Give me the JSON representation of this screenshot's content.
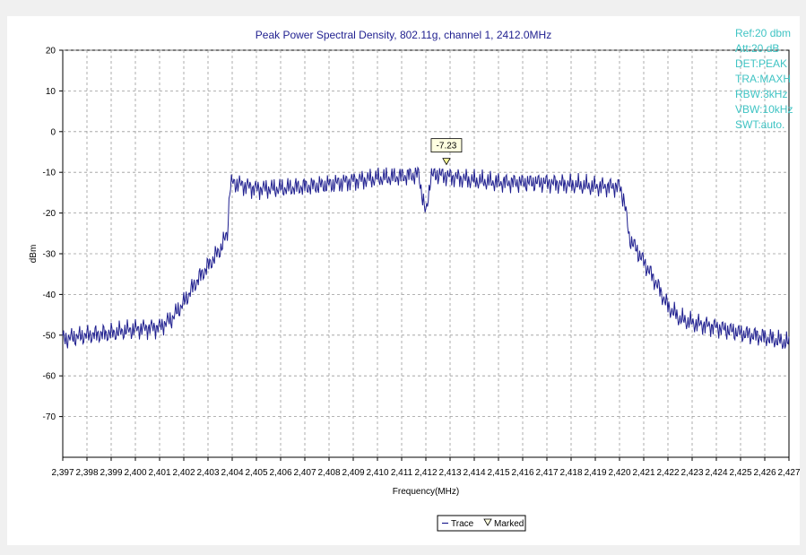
{
  "chart_data": {
    "type": "line",
    "title": "Peak Power Spectral Density, 802.11g, channel 1, 2412.0MHz",
    "xlabel": "Frequency(MHz)",
    "ylabel": "dBm",
    "xlim": [
      2397,
      2427
    ],
    "ylim": [
      -80,
      20
    ],
    "x_ticks": [
      "2,397",
      "2,398",
      "2,399",
      "2,400",
      "2,401",
      "2,402",
      "2,403",
      "2,404",
      "2,405",
      "2,406",
      "2,407",
      "2,408",
      "2,409",
      "2,410",
      "2,411",
      "2,412",
      "2,413",
      "2,414",
      "2,415",
      "2,416",
      "2,417",
      "2,418",
      "2,419",
      "2,420",
      "2,421",
      "2,422",
      "2,423",
      "2,424",
      "2,425",
      "2,426",
      "2,427"
    ],
    "y_ticks": [
      "20",
      "10",
      "0",
      "-10",
      "-20",
      "-30",
      "-40",
      "-50",
      "-60",
      "-70"
    ],
    "grid": true,
    "line_color": "#1f1f8f",
    "series": [
      {
        "name": "Trace",
        "x": [
          2397.0,
          2398.0,
          2399.0,
          2400.0,
          2401.0,
          2401.5,
          2402.0,
          2402.5,
          2403.0,
          2403.5,
          2403.8,
          2403.9,
          2404.0,
          2405.0,
          2406.0,
          2407.0,
          2408.0,
          2409.0,
          2410.0,
          2411.0,
          2411.7,
          2412.0,
          2412.2,
          2412.4,
          2413.0,
          2414.0,
          2415.0,
          2416.0,
          2417.0,
          2418.0,
          2419.0,
          2420.0,
          2420.2,
          2420.4,
          2420.6,
          2421.0,
          2421.5,
          2422.0,
          2422.5,
          2423.0,
          2424.0,
          2425.0,
          2426.0,
          2427.0
        ],
        "y": [
          -51,
          -50,
          -49.5,
          -48.5,
          -48,
          -46,
          -42,
          -37,
          -33,
          -29,
          -25,
          -14,
          -12.5,
          -14,
          -14,
          -13.5,
          -13,
          -12,
          -11.5,
          -11,
          -10.5,
          -20.5,
          -11,
          -10.5,
          -11,
          -12,
          -12.5,
          -12.5,
          -12.5,
          -13,
          -13.5,
          -13.5,
          -17,
          -26,
          -28,
          -32,
          -37,
          -43,
          -46,
          -47,
          -48,
          -49.5,
          -50.5,
          -52
        ]
      }
    ],
    "marker": {
      "x": 2412.85,
      "y": -7.23,
      "label": "-7.23"
    },
    "info_lines": [
      "Ref:20 dbm",
      "Att:20.dB",
      "DET:PEAK",
      "TRA:MAXH",
      "RBW:3kHz",
      "VBW:10kHz",
      "SWT:auto."
    ],
    "legend": {
      "trace_label": "Trace",
      "marked_label": "Marked",
      "placement": "bottom-center"
    }
  }
}
